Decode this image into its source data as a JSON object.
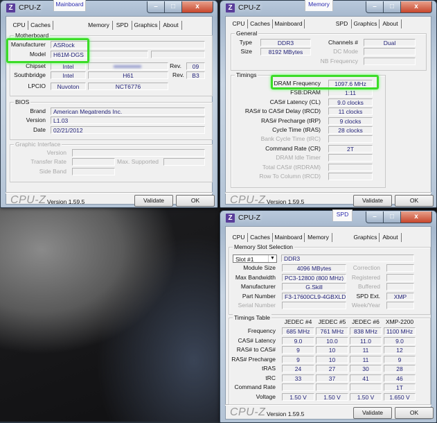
{
  "app_title": "CPU-Z",
  "tabs": [
    "CPU",
    "Caches",
    "Mainboard",
    "Memory",
    "SPD",
    "Graphics",
    "About"
  ],
  "footer": {
    "logo": "CPU-Z",
    "version": "Version 1.59.5",
    "validate": "Validate",
    "ok": "OK"
  },
  "colors": {
    "highlight": "#3cdc28",
    "value_text": "#24247a",
    "active_tab": "#2a2ab0"
  },
  "mainboard": {
    "active_tab": "Mainboard",
    "motherboard": {
      "legend": "Motherboard",
      "manufacturer_label": "Manufacturer",
      "manufacturer": "ASRock",
      "model_label": "Model",
      "model": "H61M-DGS",
      "chipset_label": "Chipset",
      "chipset_vendor": "Intel",
      "rev_label": "Rev.",
      "chipset_rev": "09",
      "southbridge_label": "Southbridge",
      "southbridge_vendor": "Intel",
      "southbridge_model": "H61",
      "southbridge_rev": "B3",
      "lpcio_label": "LPCIO",
      "lpcio_vendor": "Nuvoton",
      "lpcio_model": "NCT6776"
    },
    "bios": {
      "legend": "BIOS",
      "brand_label": "Brand",
      "brand": "American Megatrends Inc.",
      "version_label": "Version",
      "version": "L1.03",
      "date_label": "Date",
      "date": "02/21/2012"
    },
    "graphic_interface": {
      "legend": "Graphic Interface",
      "version_label": "Version",
      "transfer_rate_label": "Transfer Rate",
      "max_supported_label": "Max. Supported",
      "side_band_label": "Side Band"
    }
  },
  "memory": {
    "active_tab": "Memory",
    "general": {
      "legend": "General",
      "type_label": "Type",
      "type": "DDR3",
      "size_label": "Size",
      "size": "8192 MBytes",
      "channels_label": "Channels #",
      "channels": "Dual",
      "dc_mode_label": "DC Mode",
      "nb_frequency_label": "NB Frequency"
    },
    "timings": {
      "legend": "Timings",
      "rows": [
        {
          "label": "DRAM Frequency",
          "value": "1097.6 MHz"
        },
        {
          "label": "FSB:DRAM",
          "value": "1:11"
        },
        {
          "label": "CAS# Latency (CL)",
          "value": "9.0 clocks"
        },
        {
          "label": "RAS# to CAS# Delay (tRCD)",
          "value": "11 clocks"
        },
        {
          "label": "RAS# Precharge (tRP)",
          "value": "9 clocks"
        },
        {
          "label": "Cycle Time (tRAS)",
          "value": "28 clocks"
        },
        {
          "label": "Bank Cycle Time (tRC)",
          "value": ""
        },
        {
          "label": "Command Rate (CR)",
          "value": "2T"
        },
        {
          "label": "DRAM Idle Timer",
          "value": ""
        },
        {
          "label": "Total CAS# (tRDRAM)",
          "value": ""
        },
        {
          "label": "Row To Column (tRCD)",
          "value": ""
        }
      ]
    }
  },
  "spd": {
    "active_tab": "SPD",
    "slot": {
      "legend": "Memory Slot Selection",
      "selected": "Slot #1",
      "type": "DDR3",
      "module_size_label": "Module Size",
      "module_size": "4096 MBytes",
      "max_bandwidth_label": "Max Bandwidth",
      "max_bandwidth": "PC3-12800 (800 MHz)",
      "manufacturer_label": "Manufacturer",
      "manufacturer": "G.Skill",
      "part_number_label": "Part Number",
      "part_number": "F3-17600CL9-4GBXLD",
      "serial_number_label": "Serial Number",
      "correction_label": "Correction",
      "registered_label": "Registered",
      "buffered_label": "Buffered",
      "spd_ext_label": "SPD Ext.",
      "spd_ext": "XMP",
      "week_year_label": "Week/Year"
    },
    "timings_table": {
      "legend": "Timings Table",
      "columns": [
        "JEDEC #4",
        "JEDEC #5",
        "JEDEC #6",
        "XMP-2200"
      ],
      "rows": [
        {
          "label": "Frequency",
          "values": [
            "685 MHz",
            "761 MHz",
            "838 MHz",
            "1100 MHz"
          ]
        },
        {
          "label": "CAS# Latency",
          "values": [
            "9.0",
            "10.0",
            "11.0",
            "9.0"
          ]
        },
        {
          "label": "RAS# to CAS#",
          "values": [
            "9",
            "10",
            "11",
            "12"
          ]
        },
        {
          "label": "RAS# Precharge",
          "values": [
            "9",
            "10",
            "11",
            "9"
          ]
        },
        {
          "label": "tRAS",
          "values": [
            "24",
            "27",
            "30",
            "28"
          ]
        },
        {
          "label": "tRC",
          "values": [
            "33",
            "37",
            "41",
            "46"
          ]
        },
        {
          "label": "Command Rate",
          "values": [
            "",
            "",
            "",
            "1T"
          ]
        },
        {
          "label": "Voltage",
          "values": [
            "1.50 V",
            "1.50 V",
            "1.50 V",
            "1.650 V"
          ]
        }
      ]
    }
  }
}
